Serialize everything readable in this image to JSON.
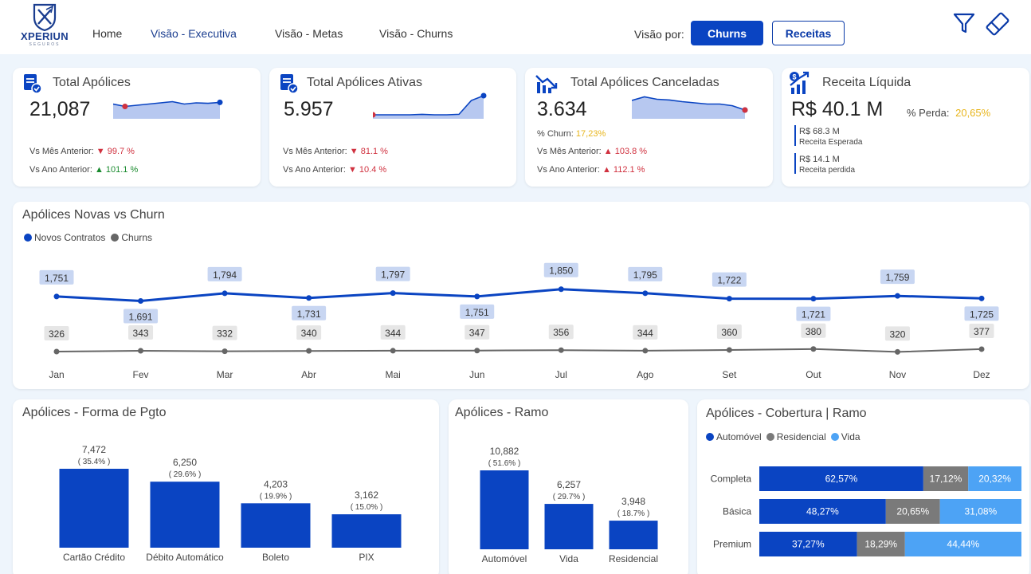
{
  "brand": {
    "name": "XPERIUN",
    "sub": "SEGUROS"
  },
  "nav": [
    {
      "label": "Home"
    },
    {
      "label": "Visão - Executiva"
    },
    {
      "label": "Visão - Metas"
    },
    {
      "label": "Visão - Churns"
    }
  ],
  "visao_por": {
    "label": "Visão por:",
    "buttons": [
      "Churns",
      "Receitas"
    ]
  },
  "colors": {
    "primary": "#0a44c2",
    "gray": "#7a7a7a",
    "light_blue": "#4da3f5",
    "area": "#b7c8f0",
    "red": "#d0313f",
    "green": "#198a2e"
  },
  "kpis": {
    "total_apolices": {
      "title": "Total Apólices",
      "value": "21,087",
      "vs_mes_label": "Vs Mês Anterior:",
      "vs_mes_value": "▼ 99.7 %",
      "vs_ano_label": "Vs Ano Anterior:",
      "vs_ano_value": "▲ 101.1 %",
      "sparkline": [
        0.55,
        0.45,
        0.5,
        0.55,
        0.6,
        0.65,
        0.55,
        0.6,
        0.58,
        0.62
      ]
    },
    "ativas": {
      "title": "Total Apólices Ativas",
      "value": "5.957",
      "vs_mes_label": "Vs Mês Anterior:",
      "vs_mes_value": "▼ 81.1 %",
      "vs_ano_label": "Vs Ano Anterior:",
      "vs_ano_value": "▼ 10.4 %",
      "sparkline": [
        0.1,
        0.1,
        0.1,
        0.1,
        0.12,
        0.1,
        0.1,
        0.12,
        0.7,
        0.9
      ]
    },
    "canceladas": {
      "title": "Total Apólices Canceladas",
      "value": "3.634",
      "churn_label": "% Churn:",
      "churn_value": "17,23%",
      "vs_mes_label": "Vs Mês Anterior:",
      "vs_mes_value": "▲ 103.8 %",
      "vs_ano_label": "Vs Ano Anterior:",
      "vs_ano_value": "▲ 112.1 %",
      "sparkline": [
        0.7,
        0.85,
        0.75,
        0.72,
        0.65,
        0.6,
        0.55,
        0.55,
        0.48,
        0.3
      ]
    },
    "receita": {
      "title": "Receita Líquida",
      "value": "R$ 40.1 M",
      "perda_label": "% Perda:",
      "perda_value": "20,65%",
      "esperada_value": "R$ 68.3 M",
      "esperada_label": "Receita Esperada",
      "perdida_value": "R$ 14.1 M",
      "perdida_label": "Receita perdida"
    }
  },
  "chart_data": [
    {
      "type": "line",
      "title": "Apólices Novas vs Churn",
      "categories": [
        "Jan",
        "Fev",
        "Mar",
        "Abr",
        "Mai",
        "Jun",
        "Jul",
        "Ago",
        "Set",
        "Out",
        "Nov",
        "Dez"
      ],
      "series": [
        {
          "name": "Novos Contratos",
          "values": [
            1751,
            1691,
            1794,
            1731,
            1797,
            1751,
            1850,
            1795,
            1722,
            1721,
            1759,
            1725
          ],
          "labels": [
            "1,751",
            "1,691",
            "1,794",
            "1,731",
            "1,797",
            "1,751",
            "1,850",
            "1,795",
            "1,722",
            "1,721",
            "1,759",
            "1,725"
          ]
        },
        {
          "name": "Churns",
          "values": [
            326,
            343,
            332,
            340,
            344,
            347,
            356,
            344,
            360,
            380,
            320,
            377
          ],
          "labels": [
            "326",
            "343",
            "332",
            "340",
            "344",
            "347",
            "356",
            "344",
            "360",
            "380",
            "320",
            "377"
          ]
        }
      ],
      "legend": "top-left",
      "grid": false
    },
    {
      "type": "bar",
      "title": "Apólices - Forma de Pgto",
      "categories": [
        "Cartão Crédito",
        "Débito Automático",
        "Boleto",
        "PIX"
      ],
      "values": [
        7472,
        6250,
        4203,
        3162
      ],
      "labels": [
        "7,472",
        "6,250",
        "4,203",
        "3,162"
      ],
      "percents": [
        "( 35.4% )",
        "( 29.6% )",
        "( 19.9% )",
        "( 15.0% )"
      ]
    },
    {
      "type": "bar",
      "title": "Apólices - Ramo",
      "categories": [
        "Automóvel",
        "Vida",
        "Residencial"
      ],
      "values": [
        10882,
        6257,
        3948
      ],
      "labels": [
        "10,882",
        "6,257",
        "3,948"
      ],
      "percents": [
        "( 51.6% )",
        "( 29.7% )",
        "( 18.7% )"
      ]
    },
    {
      "type": "bar",
      "stacked": "100%",
      "orientation": "horizontal",
      "title": "Apólices - Cobertura | Ramo",
      "categories": [
        "Completa",
        "Básica",
        "Premium"
      ],
      "series": [
        {
          "name": "Automóvel",
          "values": [
            62.57,
            48.27,
            37.27
          ],
          "labels": [
            "62,57%",
            "48,27%",
            "37,27%"
          ]
        },
        {
          "name": "Residencial",
          "values": [
            17.12,
            20.65,
            18.29
          ],
          "labels": [
            "17,12%",
            "20,65%",
            "18,29%"
          ]
        },
        {
          "name": "Vida",
          "values": [
            20.32,
            31.08,
            44.44
          ],
          "labels": [
            "20,32%",
            "31,08%",
            "44,44%"
          ]
        }
      ],
      "legend": "top-left"
    }
  ]
}
